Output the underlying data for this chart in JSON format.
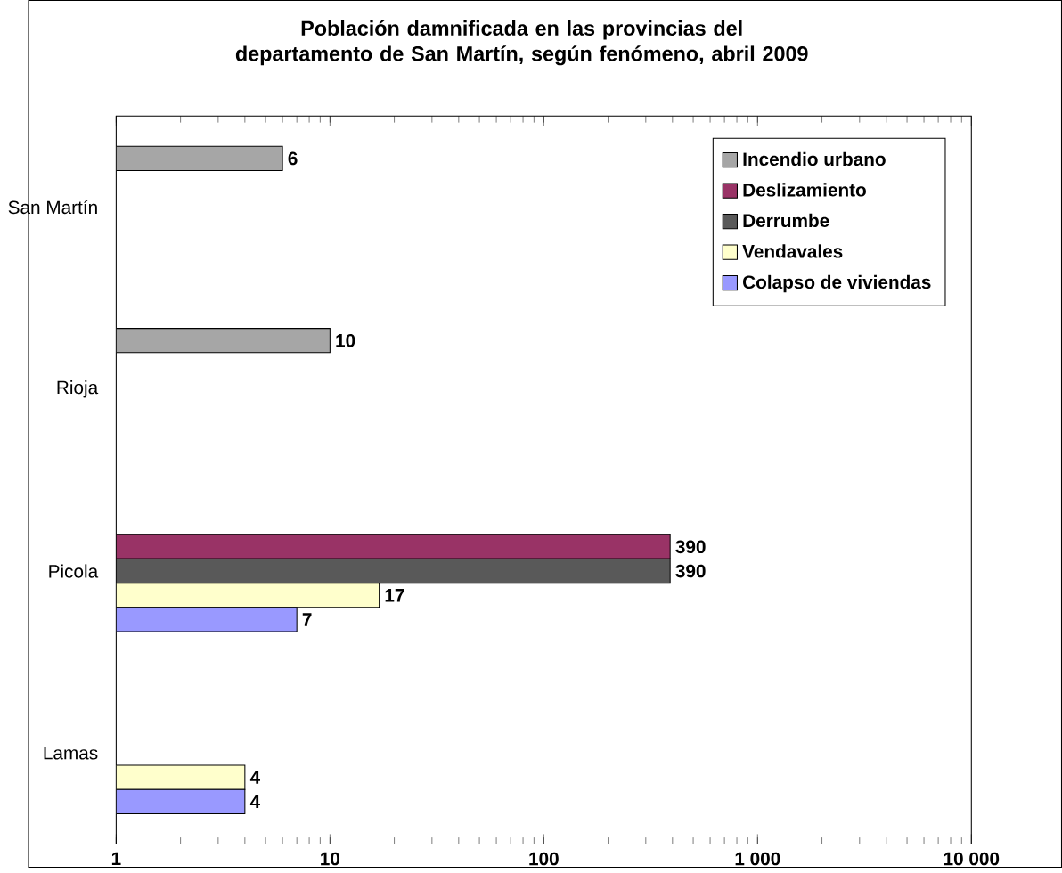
{
  "chart_data": {
    "type": "bar",
    "orientation": "horizontal",
    "log": "x",
    "title": "Población damnificada en las provincias del departamento de San Martín, según fenómeno, abril 2009",
    "categories": [
      "San Martín",
      "Rioja",
      "Picola",
      "Lamas"
    ],
    "series": [
      {
        "name": "Incendio urbano",
        "color": "#a6a6a6",
        "values": [
          6,
          10,
          null,
          null
        ],
        "value_labels": [
          "6",
          "10",
          null,
          null
        ]
      },
      {
        "name": "Deslizamiento",
        "color": "#993366",
        "values": [
          null,
          null,
          390,
          null
        ],
        "value_labels": [
          null,
          null,
          "390",
          null
        ]
      },
      {
        "name": "Derrumbe",
        "color": "#595959",
        "values": [
          null,
          null,
          390,
          null
        ],
        "value_labels": [
          null,
          null,
          "390",
          null
        ]
      },
      {
        "name": "Vendavales",
        "color": "#ffffcc",
        "values": [
          null,
          null,
          17,
          4
        ],
        "value_labels": [
          null,
          null,
          "17",
          "4"
        ]
      },
      {
        "name": "Colapso de viviendas",
        "color": "#9999ff",
        "values": [
          null,
          null,
          7,
          4
        ],
        "value_labels": [
          null,
          null,
          "7",
          "4"
        ]
      }
    ],
    "xlim": [
      1,
      10000
    ],
    "xticks": [
      1,
      10,
      100,
      {
        "value": 1000,
        "label": "1 000"
      },
      {
        "value": 10000,
        "label": "10 000"
      }
    ],
    "legend": "top right",
    "grid": false
  }
}
